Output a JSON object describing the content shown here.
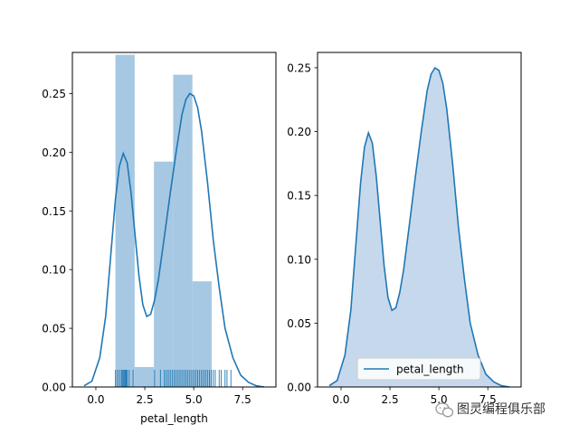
{
  "colors": {
    "series": "#1f77b4",
    "hist_fill": "#a6c8e3",
    "kde_fill": "#c6d9ec"
  },
  "watermark": {
    "text": "图灵编程俱乐部",
    "icon": "wechat-icon"
  },
  "chart_data": [
    {
      "type": "bar",
      "subtype": "histogram-with-kde-and-rug",
      "xlabel": "petal_length",
      "ylabel": "",
      "xlim": [
        -1.2,
        9.2
      ],
      "ylim": [
        0,
        0.285
      ],
      "x_ticks": [
        0.0,
        2.5,
        5.0,
        7.5
      ],
      "x_tick_labels": [
        "0.0",
        "2.5",
        "5.0",
        "7.5"
      ],
      "y_ticks": [
        0.0,
        0.05,
        0.1,
        0.15,
        0.2,
        0.25
      ],
      "y_tick_labels": [
        "0.00",
        "0.05",
        "0.10",
        "0.15",
        "0.20",
        "0.25"
      ],
      "grid": false,
      "histogram": {
        "bin_edges": [
          1.0,
          1.983,
          2.967,
          3.95,
          4.933,
          5.917,
          6.9
        ],
        "values": [
          0.283,
          0.017,
          0.192,
          0.266,
          0.09,
          0.0
        ]
      },
      "kde": {
        "x": [
          -0.6,
          -0.2,
          0.2,
          0.5,
          0.8,
          1.0,
          1.2,
          1.4,
          1.6,
          1.8,
          2.0,
          2.2,
          2.4,
          2.6,
          2.8,
          3.0,
          3.2,
          3.5,
          3.8,
          4.1,
          4.4,
          4.6,
          4.8,
          5.0,
          5.2,
          5.4,
          5.7,
          6.0,
          6.3,
          6.6,
          7.0,
          7.4,
          7.8,
          8.2,
          8.6
        ],
        "y": [
          0.001,
          0.005,
          0.025,
          0.06,
          0.12,
          0.16,
          0.188,
          0.199,
          0.191,
          0.165,
          0.13,
          0.095,
          0.07,
          0.06,
          0.062,
          0.074,
          0.092,
          0.128,
          0.165,
          0.2,
          0.232,
          0.245,
          0.25,
          0.248,
          0.238,
          0.218,
          0.175,
          0.125,
          0.085,
          0.05,
          0.025,
          0.01,
          0.004,
          0.001,
          0.0
        ]
      },
      "rug": [
        1.0,
        1.1,
        1.2,
        1.3,
        1.35,
        1.4,
        1.45,
        1.5,
        1.55,
        1.6,
        1.7,
        1.9,
        3.0,
        3.3,
        3.5,
        3.6,
        3.7,
        3.8,
        3.9,
        4.0,
        4.1,
        4.2,
        4.3,
        4.4,
        4.5,
        4.6,
        4.7,
        4.8,
        4.9,
        5.0,
        5.1,
        5.2,
        5.3,
        5.4,
        5.5,
        5.6,
        5.7,
        5.8,
        5.9,
        6.0,
        6.1,
        6.3,
        6.4,
        6.6,
        6.7,
        6.9
      ]
    },
    {
      "type": "area",
      "subtype": "kde-shaded",
      "xlabel": "",
      "ylabel": "",
      "xlim": [
        -1.2,
        9.2
      ],
      "ylim": [
        0,
        0.262
      ],
      "x_ticks": [
        0.0,
        2.5,
        5.0,
        7.5
      ],
      "x_tick_labels": [
        "0.0",
        "2.5",
        "5.0",
        "7.5"
      ],
      "y_ticks": [
        0.0,
        0.05,
        0.1,
        0.15,
        0.2,
        0.25
      ],
      "y_tick_labels": [
        "0.00",
        "0.05",
        "0.10",
        "0.15",
        "0.20",
        "0.25"
      ],
      "grid": false,
      "legend": {
        "placement": "lower-right",
        "entries": [
          "petal_length"
        ]
      },
      "series": [
        {
          "name": "petal_length",
          "x": [
            -0.6,
            -0.2,
            0.2,
            0.5,
            0.8,
            1.0,
            1.2,
            1.4,
            1.6,
            1.8,
            2.0,
            2.2,
            2.4,
            2.6,
            2.8,
            3.0,
            3.2,
            3.5,
            3.8,
            4.1,
            4.4,
            4.6,
            4.8,
            5.0,
            5.2,
            5.4,
            5.7,
            6.0,
            6.3,
            6.6,
            7.0,
            7.4,
            7.8,
            8.2,
            8.6
          ],
          "y": [
            0.001,
            0.005,
            0.025,
            0.06,
            0.12,
            0.16,
            0.188,
            0.199,
            0.191,
            0.165,
            0.13,
            0.095,
            0.07,
            0.06,
            0.062,
            0.074,
            0.092,
            0.128,
            0.165,
            0.2,
            0.232,
            0.245,
            0.25,
            0.248,
            0.238,
            0.218,
            0.175,
            0.125,
            0.085,
            0.05,
            0.025,
            0.01,
            0.004,
            0.001,
            0.0
          ]
        }
      ]
    }
  ]
}
